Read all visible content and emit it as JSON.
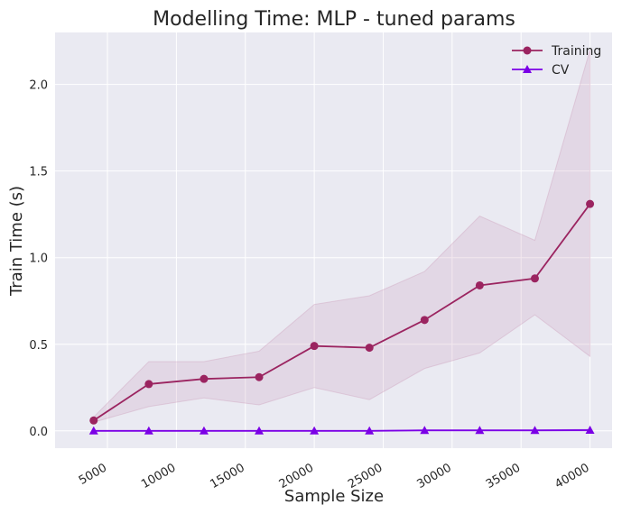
{
  "chart_data": {
    "type": "line",
    "title": "Modelling Time: MLP - tuned params",
    "xlabel": "Sample Size",
    "ylabel": "Train Time (s)",
    "xlim": [
      1200,
      41600
    ],
    "ylim": [
      -0.1,
      2.3
    ],
    "xticks": [
      5000,
      10000,
      15000,
      20000,
      25000,
      30000,
      35000,
      40000
    ],
    "yticks": [
      0.0,
      0.5,
      1.0,
      1.5,
      2.0
    ],
    "ytick_labels": [
      "0.0",
      "0.5",
      "1.0",
      "1.5",
      "2.0"
    ],
    "grid": true,
    "legend_position": "top-right",
    "x": [
      4000,
      8000,
      12000,
      16000,
      20000,
      24000,
      28000,
      32000,
      36000,
      40000
    ],
    "series": [
      {
        "name": "Training",
        "marker": "circle",
        "color": "#9b2460",
        "values": [
          0.06,
          0.27,
          0.3,
          0.31,
          0.49,
          0.48,
          0.64,
          0.84,
          0.88,
          1.31
        ],
        "lower": [
          0.05,
          0.14,
          0.19,
          0.15,
          0.25,
          0.18,
          0.36,
          0.45,
          0.67,
          0.43
        ],
        "upper": [
          0.08,
          0.4,
          0.4,
          0.46,
          0.73,
          0.78,
          0.92,
          1.24,
          1.1,
          2.2
        ]
      },
      {
        "name": "CV",
        "marker": "triangle",
        "color": "#7b00e6",
        "values": [
          0.0,
          0.0,
          0.0,
          0.0,
          0.0,
          0.0,
          0.003,
          0.003,
          0.003,
          0.004
        ],
        "lower": [
          0.0,
          0.0,
          0.0,
          0.0,
          0.0,
          0.0,
          0.0,
          0.0,
          0.0,
          0.0
        ],
        "upper": [
          0.0,
          0.0,
          0.0,
          0.0,
          0.0,
          0.0,
          0.006,
          0.006,
          0.006,
          0.008
        ]
      }
    ],
    "colors": {
      "plot_background": "#eaeaf2",
      "grid": "#ffffff",
      "band": "#c994b4"
    }
  }
}
